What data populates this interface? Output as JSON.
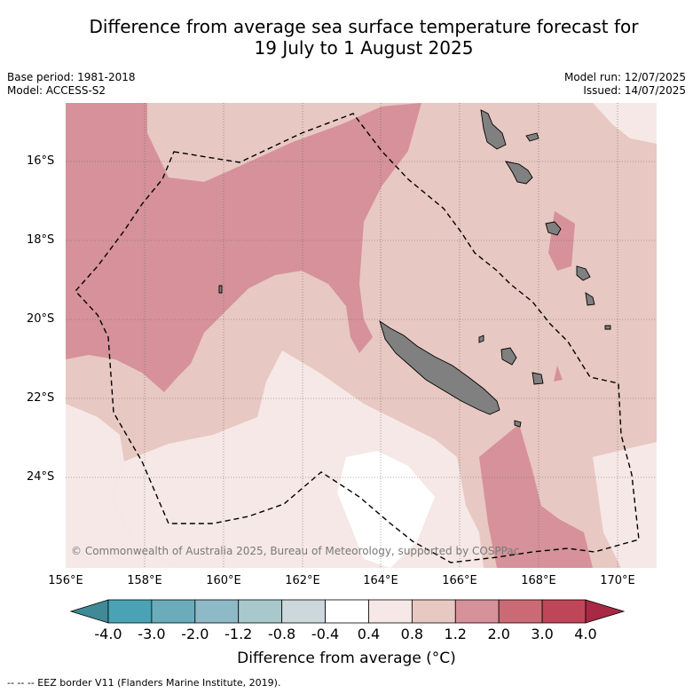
{
  "title": {
    "line1": "Difference from average sea surface temperature forecast for",
    "line2": "19 July to 1 August 2025"
  },
  "meta": {
    "base_period": "Base period: 1981-2018",
    "model": "Model: ACCESS-S2",
    "model_run": "Model run: 12/07/2025",
    "issued": "Issued: 14/07/2025"
  },
  "axes": {
    "lat_labels": [
      "16°S",
      "18°S",
      "20°S",
      "22°S",
      "24°S"
    ],
    "lon_labels": [
      "156°E",
      "158°E",
      "160°E",
      "162°E",
      "164°E",
      "166°E",
      "168°E",
      "170°E"
    ]
  },
  "copyright": "© Commonwealth of Australia 2025, Bureau of Meteorology, supported by COSPPac",
  "colorbar": {
    "ticks": [
      "-4.0",
      "-3.0",
      "-2.0",
      "-1.2",
      "-0.8",
      "-0.4",
      "0.4",
      "0.8",
      "1.2",
      "2.0",
      "3.0",
      "4.0"
    ],
    "label": "Difference from average (°C)",
    "colors": [
      "#3f8a96",
      "#4aa3b4",
      "#6bacbb",
      "#8dbac6",
      "#a9c8cc",
      "#ccd8db",
      "#ffffff",
      "#f5e8e6",
      "#e8c8c2",
      "#d6919a",
      "#cb6a74",
      "#bf4658",
      "#a82943"
    ]
  },
  "footnote": "-- -- -- EEZ border V11 (Flanders Marine Institute, 2019)."
}
